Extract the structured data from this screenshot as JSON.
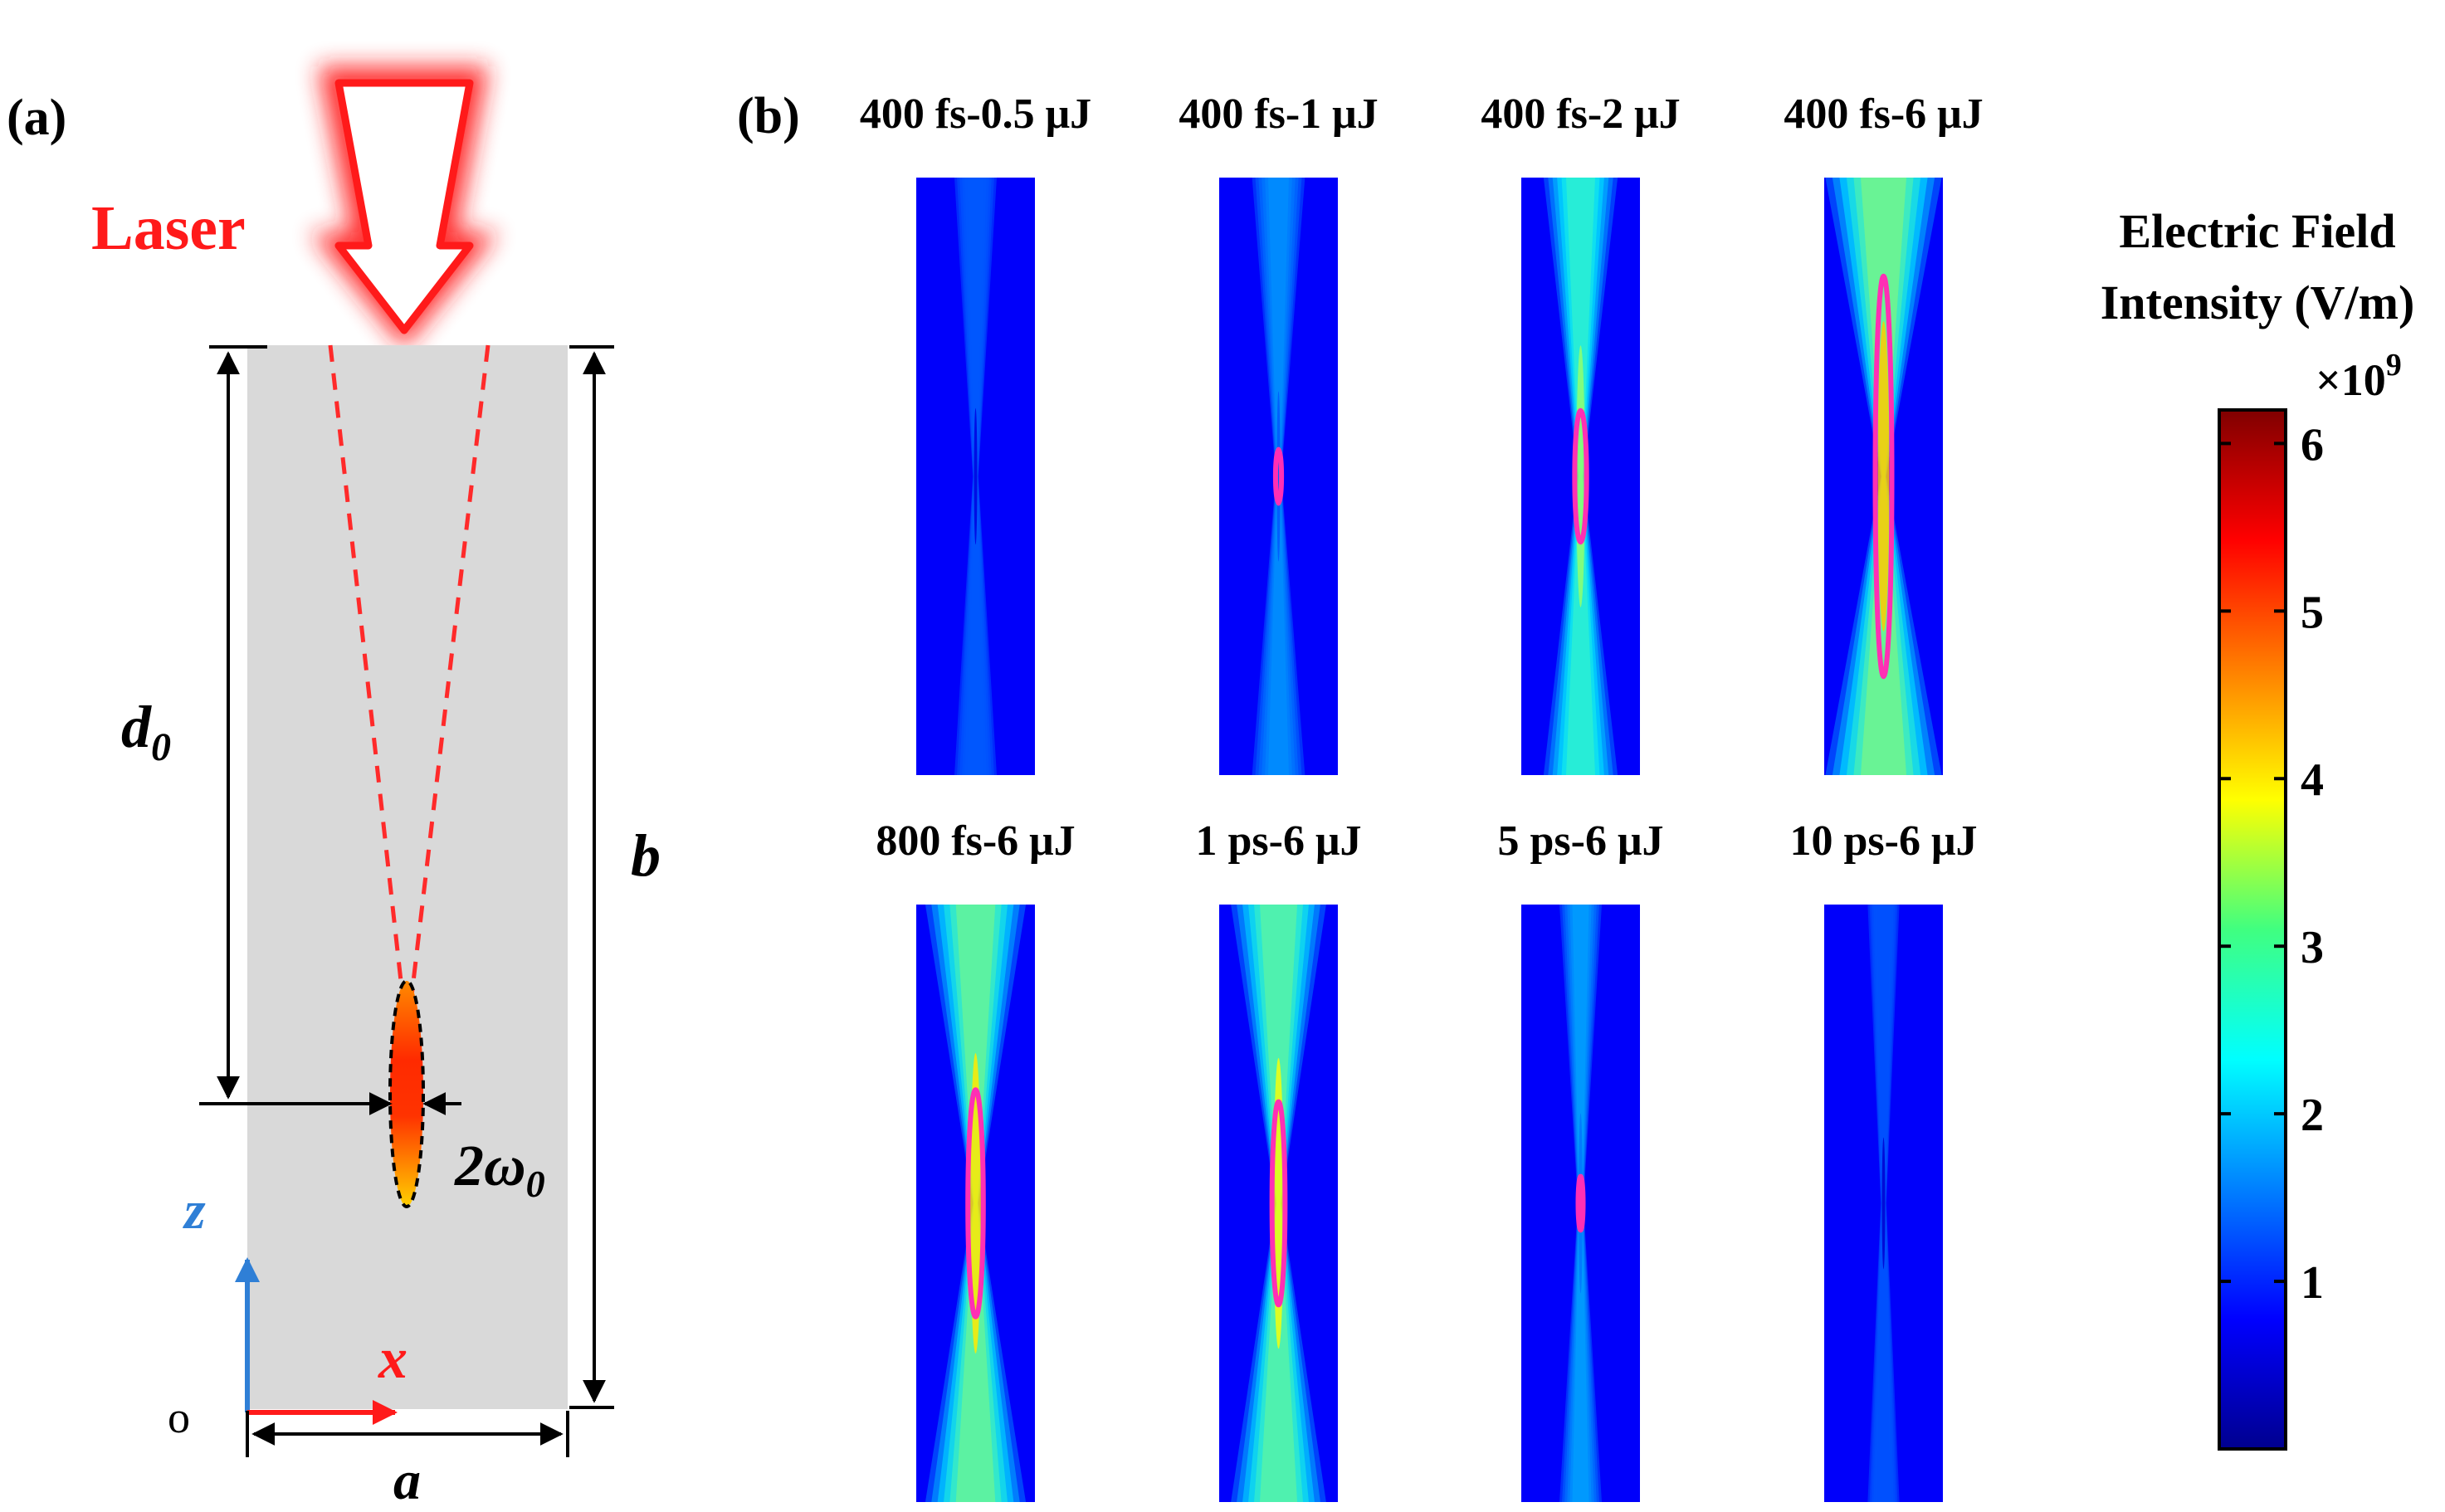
{
  "panel_a": {
    "label": "(a)",
    "laser_label": "Laser",
    "d0": "d",
    "d0_sub": "0",
    "b": "b",
    "a": "a",
    "w0_prefix": "2ω",
    "w0_sub": "0",
    "z_axis": "z",
    "x_axis": "x",
    "origin": "o"
  },
  "panel_b": {
    "label": "(b)",
    "panels": [
      {
        "title": "400 fs-0.5 μJ",
        "peak": 0.6,
        "spread": 0.4,
        "contour": false
      },
      {
        "title": "400 fs-1 μJ",
        "peak": 1.3,
        "spread": 0.5,
        "contour": true,
        "contour_half_len": 0.09,
        "contour_half_w": 0.05
      },
      {
        "title": "400 fs-2 μJ",
        "peak": 3.2,
        "spread": 0.7,
        "contour": true,
        "contour_half_len": 0.22,
        "contour_half_w": 0.1
      },
      {
        "title": "400 fs-6 μJ",
        "peak": 4.2,
        "spread": 1.1,
        "contour": true,
        "contour_half_len": 0.67,
        "contour_half_w": 0.14
      },
      {
        "title": "800 fs-6 μJ",
        "peak": 4.0,
        "spread": 0.95,
        "contour": true,
        "contour_half_len": 0.38,
        "contour_half_w": 0.13
      },
      {
        "title": "1 ps-6 μJ",
        "peak": 3.8,
        "spread": 0.9,
        "contour": true,
        "contour_half_len": 0.34,
        "contour_half_w": 0.11
      },
      {
        "title": "5 ps-6 μJ",
        "peak": 1.5,
        "spread": 0.4,
        "contour": true,
        "contour_half_len": 0.09,
        "contour_half_w": 0.04
      },
      {
        "title": "10 ps-6 μJ",
        "peak": 0.5,
        "spread": 0.3,
        "contour": false
      }
    ]
  },
  "colorbar": {
    "title_line1": "Electric Field",
    "title_line2": "Intensity (V/m)",
    "multiplier": "×10",
    "exponent": "9",
    "min": 0,
    "max": 6.2,
    "ticks": [
      {
        "value": 1,
        "label": "1"
      },
      {
        "value": 2,
        "label": "2"
      },
      {
        "value": 3,
        "label": "3"
      },
      {
        "value": 4,
        "label": "4"
      },
      {
        "value": 5,
        "label": "5"
      },
      {
        "value": 6,
        "label": "6"
      }
    ]
  },
  "colors": {
    "laser_red": "#ff1a1a",
    "sample_gray": "#d9d9d9",
    "z_axis_blue": "#2f7fd6",
    "x_axis_red": "#ff1a1a",
    "contour_magenta": "#ff2fb4",
    "dashed_red": "#ff2a2a"
  }
}
